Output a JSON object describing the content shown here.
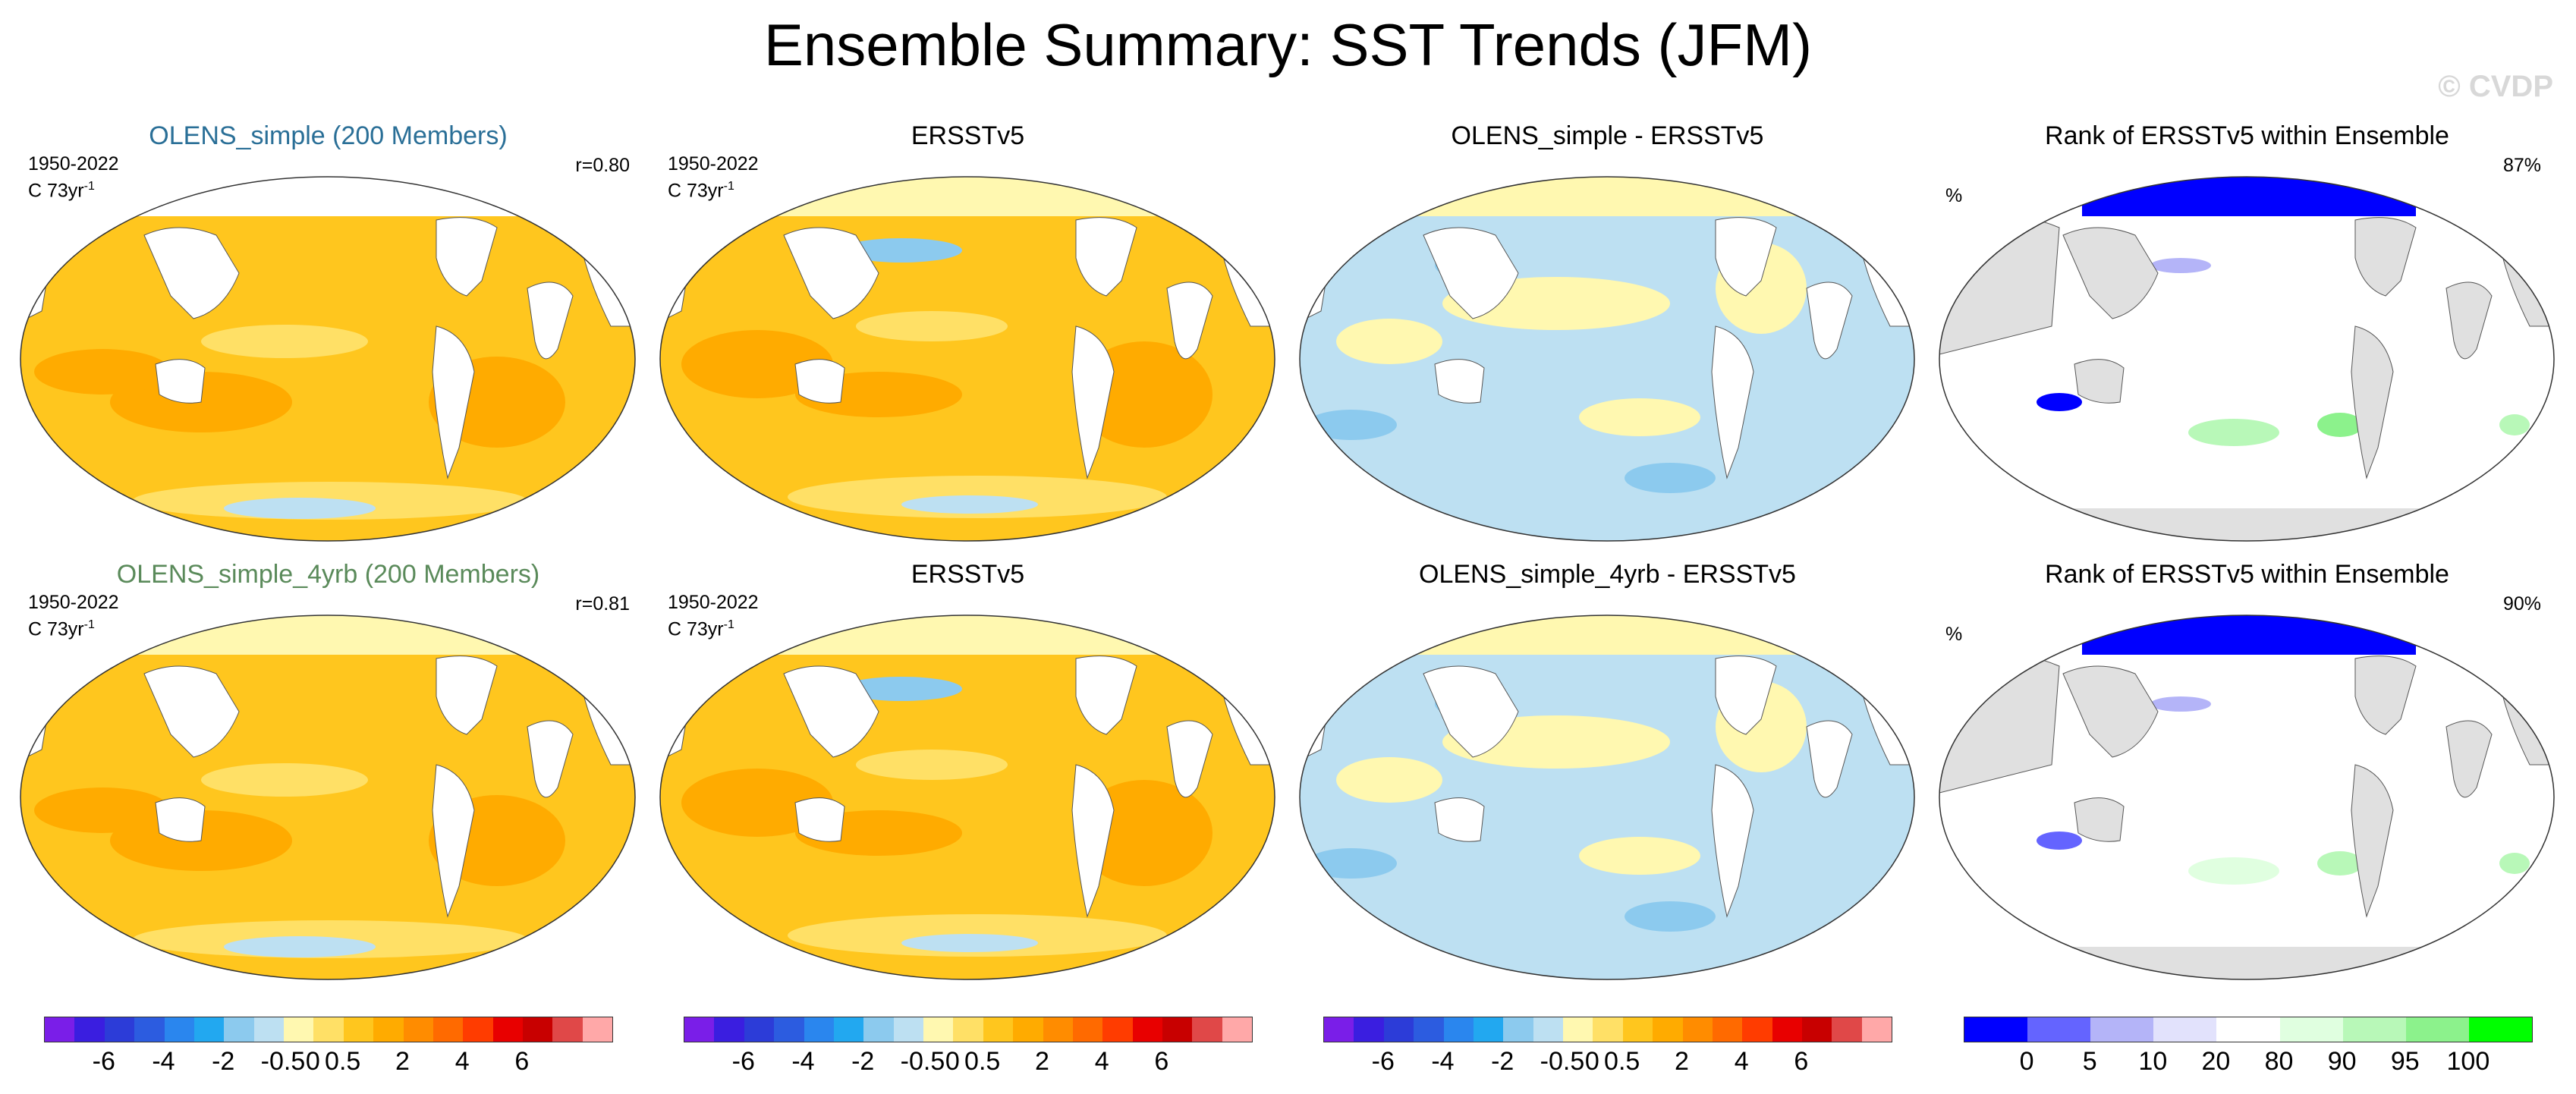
{
  "title": "Ensemble Summary: SST Trends (JFM)",
  "watermark": "© CVDP",
  "rows": [
    {
      "panels": [
        {
          "title": "OLENS_simple (200 Members)",
          "period": "1950-2022",
          "units": "C 73yr",
          "units_exp": "-1",
          "r": "r=0.80",
          "kind": "model"
        },
        {
          "title": "ERSSTv5",
          "period": "1950-2022",
          "units": "C 73yr",
          "units_exp": "-1",
          "kind": "obs"
        },
        {
          "title": "OLENS_simple - ERSSTv5",
          "kind": "diff"
        },
        {
          "title": "Rank of ERSSTv5 within Ensemble",
          "unit": "%",
          "pct": "87%",
          "kind": "rank"
        }
      ]
    },
    {
      "panels": [
        {
          "title": "OLENS_simple_4yrb (200 Members)",
          "period": "1950-2022",
          "units": "C 73yr",
          "units_exp": "-1",
          "r": "r=0.81",
          "kind": "model"
        },
        {
          "title": "ERSSTv5",
          "period": "1950-2022",
          "units": "C 73yr",
          "units_exp": "-1",
          "kind": "obs"
        },
        {
          "title": "OLENS_simple_4yrb - ERSSTv5",
          "kind": "diff"
        },
        {
          "title": "Rank of ERSSTv5 within Ensemble",
          "unit": "%",
          "pct": "90%",
          "kind": "rank"
        }
      ]
    }
  ],
  "colorbars": {
    "trend": {
      "colors": [
        "#7a1ee8",
        "#3a1ee0",
        "#2c3cd8",
        "#2c5ce0",
        "#2a86ee",
        "#22a8f0",
        "#8ccaee",
        "#bde0f2",
        "#fff8b0",
        "#ffe066",
        "#ffc61e",
        "#ffab00",
        "#ff8c00",
        "#ff6a00",
        "#ff3c00",
        "#e80000",
        "#c80000",
        "#e04848",
        "#ffa8a8"
      ],
      "labels": [
        "-6",
        "-4",
        "-2",
        "-0.5",
        "0",
        "0.5",
        "2",
        "4",
        "6"
      ]
    },
    "rank": {
      "colors": [
        "#0000ff",
        "#6464ff",
        "#b4b4f8",
        "#e2e2fc",
        "#ffffff",
        "#e0ffe0",
        "#b8f8b8",
        "#8cf28c",
        "#00ff00"
      ],
      "labels": [
        "0",
        "5",
        "10",
        "20",
        "80",
        "90",
        "95",
        "100"
      ]
    }
  },
  "colors": {
    "land": "#e0e0e0",
    "ocean_warm": "#ffc61e",
    "ocean_strong": "#ffab00",
    "ocean_light": "#ffe066",
    "diff_blue": "#bde0f2",
    "diff_yellow": "#fff8b0"
  }
}
